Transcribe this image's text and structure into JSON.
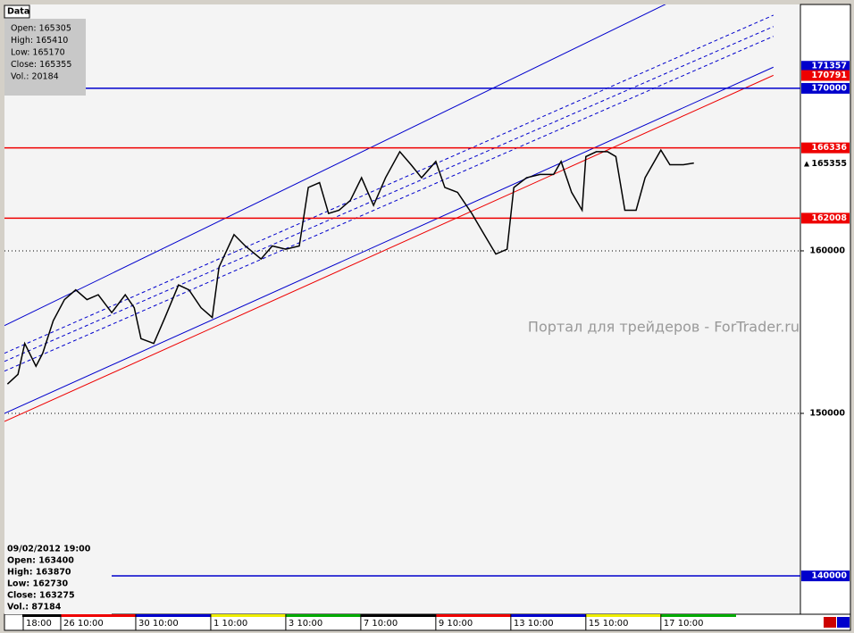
{
  "tab": "Data",
  "data_box": [
    "Open: 165305",
    "High: 165410",
    "Low: 165170",
    "Close: 165355",
    "Vol.: 20184"
  ],
  "info_box": [
    "09/02/2012 19:00",
    "Open: 163400",
    "High: 163870",
    "Low: 162730",
    "Close: 163275",
    "Vol.: 87184"
  ],
  "watermark": "Портал для трейдеров - ForTrader.ru",
  "chart_data": {
    "type": "line",
    "x": [
      0.29,
      0.43,
      0.52,
      0.67,
      0.76,
      0.9,
      1.05,
      1.2,
      1.35,
      1.5,
      1.68,
      1.86,
      1.98,
      2.07,
      2.24,
      2.39,
      2.57,
      2.71,
      2.87,
      3.02,
      3.11,
      3.31,
      3.46,
      3.67,
      3.82,
      4.0,
      4.18,
      4.3,
      4.45,
      4.57,
      4.71,
      4.86,
      5.01,
      5.17,
      5.33,
      5.52,
      5.67,
      5.81,
      6.0,
      6.12,
      6.29,
      6.48,
      6.62,
      6.8,
      6.95,
      7.04,
      7.21,
      7.39,
      7.57,
      7.67,
      7.81,
      7.95,
      8.0,
      8.14,
      8.29,
      8.4,
      8.52,
      8.67,
      8.79,
      9.0,
      9.12,
      9.3,
      9.44
    ],
    "series": [
      {
        "color": "#000000",
        "values": [
          151800,
          152400,
          154300,
          152900,
          153700,
          155700,
          157000,
          157600,
          157000,
          157300,
          156200,
          157300,
          156500,
          154600,
          154300,
          155900,
          157900,
          157600,
          156500,
          155900,
          159000,
          161000,
          160300,
          159500,
          160300,
          160100,
          160300,
          163900,
          164200,
          162300,
          162500,
          163100,
          164500,
          162800,
          164500,
          166100,
          165300,
          164500,
          165500,
          163900,
          163600,
          162300,
          161200,
          159800,
          160100,
          163900,
          164500,
          164700,
          164700,
          165500,
          163600,
          162500,
          165800,
          166100,
          166100,
          165800,
          162500,
          162500,
          164500,
          166200,
          165300,
          165300,
          165400
        ]
      }
    ],
    "xlim": [
      0.25,
      10.86
    ],
    "xticks": [
      {
        "value": 0.5,
        "label": "18:00"
      },
      {
        "value": 1,
        "label": "26 10:00"
      },
      {
        "value": 2,
        "label": "30 10:00"
      },
      {
        "value": 3,
        "label": "1 10:00"
      },
      {
        "value": 4,
        "label": "3 10:00"
      },
      {
        "value": 5,
        "label": "7 10:00"
      },
      {
        "value": 6,
        "label": "9 10:00"
      },
      {
        "value": 7,
        "label": "13 10:00"
      },
      {
        "value": 8,
        "label": "15 10:00"
      },
      {
        "value": 9,
        "label": "17 10:00"
      }
    ],
    "ylim": [
      137640,
      175160
    ],
    "yticks": [
      150000,
      160000
    ],
    "grid": true,
    "levels": [
      {
        "value": 171357,
        "color": "#0000cc",
        "line": false
      },
      {
        "value": 170791,
        "color": "#ee0000",
        "line": false
      },
      {
        "value": 170000,
        "color": "#0000cc",
        "line": true
      },
      {
        "value": 166336,
        "color": "#ee0000",
        "line": true
      },
      {
        "value": 162008,
        "color": "#ee0000",
        "line": true
      },
      {
        "value": 140000,
        "color": "#0000cc",
        "line": true
      }
    ],
    "last_price": 165355,
    "trendlines": [
      {
        "color": "#0000cc",
        "dash": false,
        "x": [
          0.25,
          10.5
        ],
        "y": [
          155400,
          178400
        ]
      },
      {
        "color": "#0000cc",
        "dash": true,
        "x": [
          0.25,
          10.5
        ],
        "y": [
          153700,
          174500
        ]
      },
      {
        "color": "#0000cc",
        "dash": true,
        "x": [
          0.25,
          10.5
        ],
        "y": [
          153200,
          173800
        ]
      },
      {
        "color": "#0000cc",
        "dash": true,
        "x": [
          0.25,
          10.5
        ],
        "y": [
          152600,
          173200
        ]
      },
      {
        "color": "#0000cc",
        "dash": false,
        "x": [
          0.25,
          10.5
        ],
        "y": [
          150000,
          171300
        ]
      },
      {
        "color": "#ee0000",
        "dash": false,
        "x": [
          0.25,
          10.5
        ],
        "y": [
          149500,
          170800
        ]
      }
    ]
  }
}
